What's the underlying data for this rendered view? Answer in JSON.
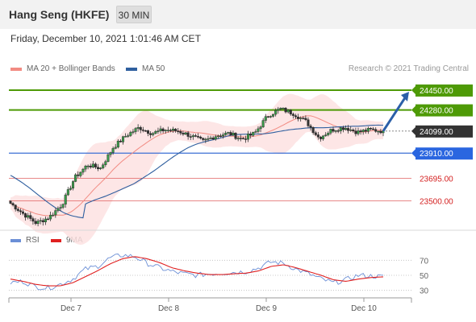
{
  "header": {
    "title": "Hang Seng (HKFE)",
    "timeframe": "30 MIN",
    "datetime": "Friday, December 10, 2021 1:01:46 AM CET"
  },
  "colors": {
    "support_resistance_green": "#4e9a06",
    "current": "#333333",
    "blue_line": "#3b6fd4",
    "red_level": "#e06060",
    "bollinger_fill": "#fde2e2",
    "ma20": "#f28b82",
    "ma50": "#2f5f9f",
    "rsi": "#6b8fd6",
    "rsi_ma": "#e02020",
    "arrow": "#2b5fa8"
  },
  "chart_data": [
    {
      "type": "candlestick",
      "legend": [
        {
          "name": "MA 20 + Bollinger Bands",
          "color": "#f28b82"
        },
        {
          "name": "MA 50",
          "color": "#2f5f9f"
        }
      ],
      "credit": "Research © 2021 Trading Central",
      "ylim": [
        23270,
        24560
      ],
      "x_ticks": [
        "Dec 7",
        "Dec 8",
        "Dec 9",
        "Dec 10"
      ],
      "levels": [
        {
          "value": 24450,
          "label": "24450.00",
          "kind": "resistance"
        },
        {
          "value": 24280,
          "label": "24280.00",
          "kind": "resistance"
        },
        {
          "value": 24099,
          "label": "24099.00",
          "kind": "current"
        },
        {
          "value": 23910,
          "label": "23910.00",
          "kind": "pivot"
        },
        {
          "value": 23695,
          "label": "23695.00",
          "kind": "support"
        },
        {
          "value": 23500,
          "label": "23500.00",
          "kind": "support"
        }
      ],
      "close_keys": [
        23480,
        23390,
        23310,
        23360,
        23470,
        23700,
        23810,
        23780,
        23960,
        24060,
        24130,
        24080,
        24110,
        24100,
        24060,
        24010,
        24060,
        24080,
        24030,
        24080,
        24230,
        24290,
        24250,
        24180,
        24040,
        24110,
        24130,
        24090,
        24110,
        24099
      ]
    },
    {
      "type": "line",
      "legend": [
        {
          "name": "RSI",
          "color": "#6b8fd6"
        },
        {
          "name": "9MA",
          "color": "#e02020"
        }
      ],
      "ylim": [
        20,
        95
      ],
      "y_ticks": [
        70,
        50,
        30
      ],
      "series": [
        {
          "name": "RSI",
          "values": [
            40,
            42,
            35,
            33,
            38,
            45,
            58,
            62,
            73,
            77,
            75,
            66,
            60,
            55,
            52,
            50,
            52,
            53,
            54,
            55,
            60,
            68,
            66,
            58,
            52,
            45,
            40,
            44,
            50,
            49,
            48
          ]
        },
        {
          "name": "9MA",
          "values": [
            45,
            42,
            38,
            36,
            36,
            40,
            48,
            56,
            65,
            72,
            75,
            72,
            67,
            60,
            56,
            53,
            51,
            51,
            52,
            53,
            56,
            62,
            64,
            60,
            55,
            50,
            44,
            42,
            45,
            47,
            48
          ]
        }
      ]
    }
  ]
}
